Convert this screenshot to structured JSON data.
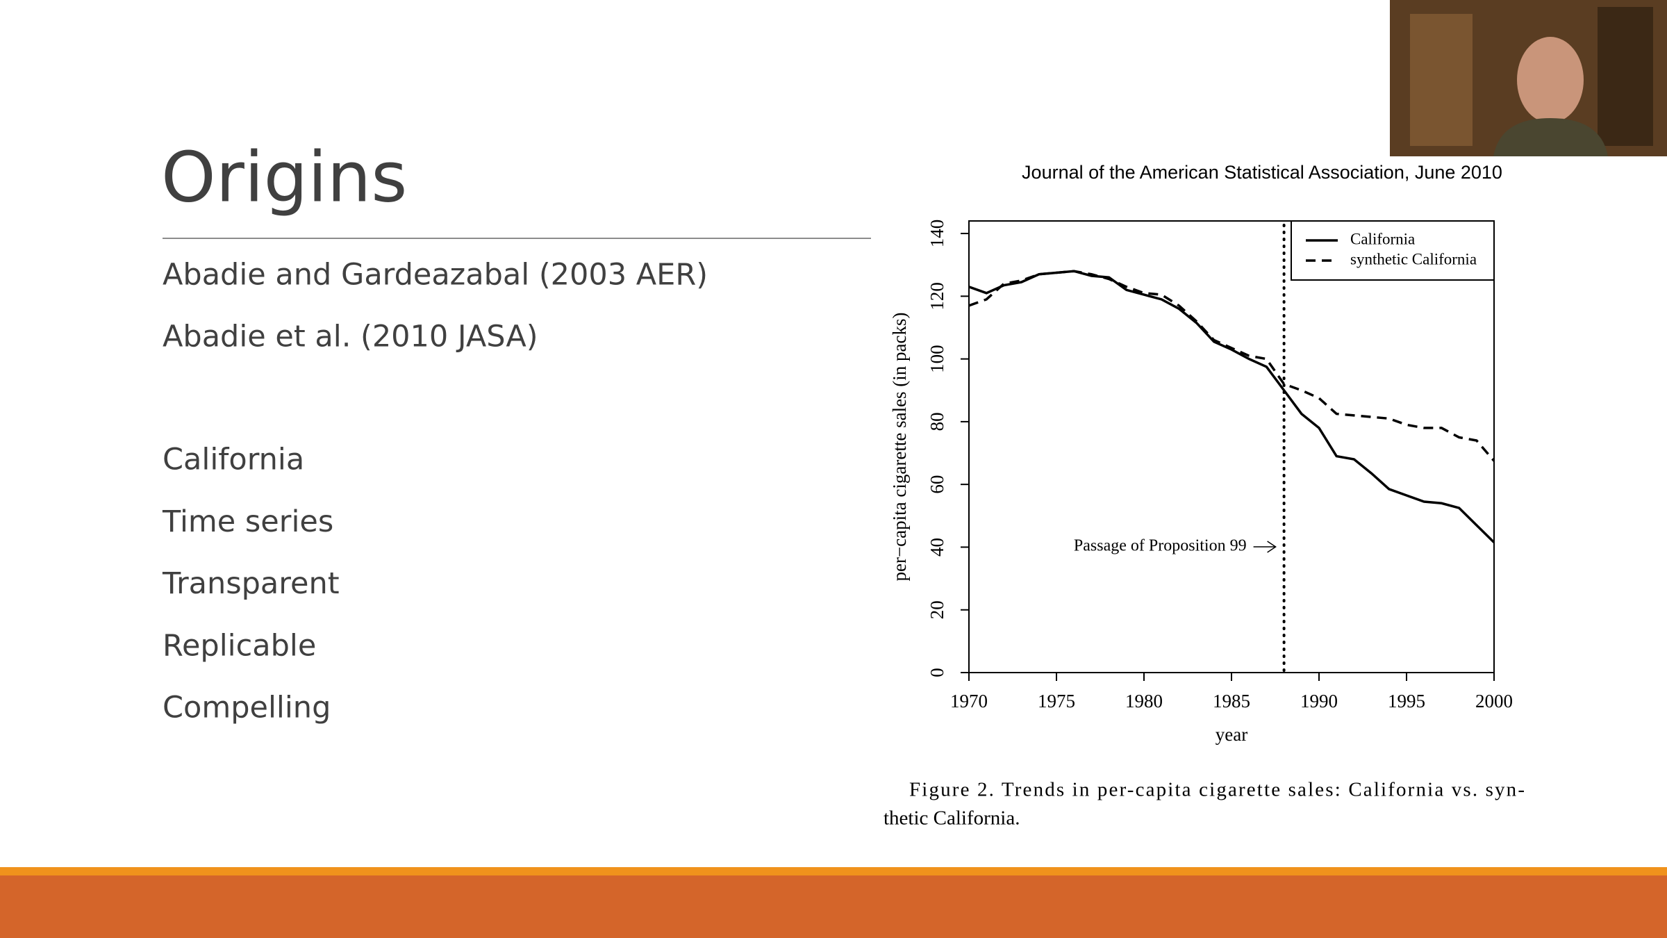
{
  "slide": {
    "title": "Origins",
    "items": [
      "Abadie and Gardeazabal (2003 AER)",
      "Abadie et al. (2010 JASA)",
      "California",
      "Time series",
      "Transparent",
      "Replicable",
      "Compelling"
    ]
  },
  "chart_data": {
    "type": "line",
    "source": "Journal of the American Statistical Association, June 2010",
    "x": [
      1970,
      1971,
      1972,
      1973,
      1974,
      1975,
      1976,
      1977,
      1978,
      1979,
      1980,
      1981,
      1982,
      1983,
      1984,
      1985,
      1986,
      1987,
      1988,
      1989,
      1990,
      1991,
      1992,
      1993,
      1994,
      1995,
      1996,
      1997,
      1998,
      1999,
      2000
    ],
    "series": [
      {
        "name": "California",
        "color": "#000000",
        "line_style": "solid",
        "values": [
          123,
          121,
          123.5,
          124.5,
          127,
          127.5,
          128,
          126.5,
          126,
          122,
          120.5,
          119,
          116,
          111.5,
          105.5,
          103,
          100,
          97.5,
          90,
          82.5,
          78,
          69,
          68,
          63.5,
          58.5,
          56.5,
          54.5,
          54,
          52.5,
          47,
          41.5
        ]
      },
      {
        "name": "synthetic California",
        "color": "#000000",
        "line_style": "dashed",
        "values": [
          117,
          119,
          124,
          125,
          127,
          127.5,
          128,
          127,
          125.5,
          123,
          121,
          120.5,
          117,
          112,
          106,
          103.5,
          101,
          100,
          92,
          90,
          87.5,
          82.5,
          82,
          81.5,
          81,
          79,
          78,
          78,
          75,
          74,
          67.5
        ]
      }
    ],
    "xlim": [
      1970,
      2000
    ],
    "xticks": [
      1970,
      1975,
      1980,
      1985,
      1990,
      1995,
      2000
    ],
    "ylim": [
      0,
      144
    ],
    "yticks": [
      0,
      20,
      40,
      60,
      80,
      100,
      120,
      140
    ],
    "xlabel": "year",
    "ylabel": "per−capita cigarette sales (in packs)",
    "legend": "upper right",
    "vline": 1988,
    "annotation": "Passage of Proposition 99",
    "caption_lines": [
      "Figure 2.  Trends in per-capita cigarette sales: California vs. syn-",
      "thetic California."
    ]
  }
}
